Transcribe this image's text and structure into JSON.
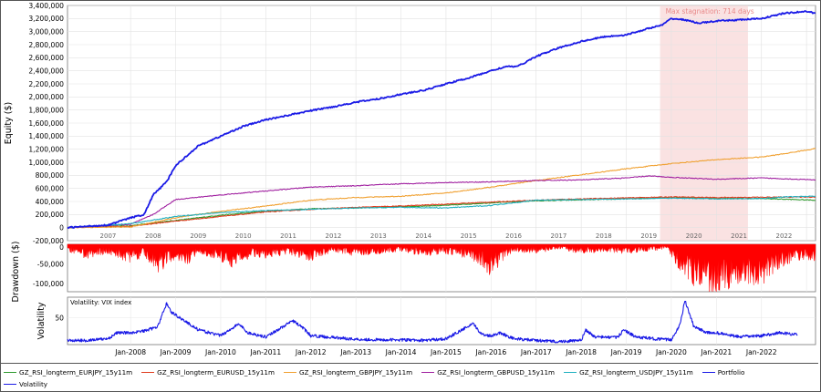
{
  "chart_data": [
    {
      "type": "line",
      "panel": "equity",
      "ylabel": "Equity ($)",
      "ylim": [
        -200000,
        3400000
      ],
      "yticks": [
        -200000,
        0,
        200000,
        400000,
        600000,
        800000,
        1000000,
        1200000,
        1400000,
        1600000,
        1800000,
        2000000,
        2200000,
        2400000,
        2600000,
        2800000,
        3000000,
        3200000,
        3400000
      ],
      "ytick_labels": [
        "-200,000",
        "0",
        "200,000",
        "400,000",
        "600,000",
        "800,000",
        "1,000,000",
        "1,200,000",
        "1,400,000",
        "1,600,000",
        "1,800,000",
        "2,000,000",
        "2,200,000",
        "2,400,000",
        "2,600,000",
        "2,800,000",
        "3,000,000",
        "3,200,000",
        "3,400,000"
      ],
      "xlim": [
        2006.6,
        2023.2
      ],
      "xticks": [
        2007,
        2008,
        2009,
        2010,
        2011,
        2012,
        2013,
        2014,
        2015,
        2016,
        2017,
        2018,
        2019,
        2020,
        2021,
        2022
      ],
      "xtick_labels": [
        "2007",
        "2008",
        "2009",
        "2010",
        "2011",
        "2012",
        "2013",
        "2014",
        "2015",
        "2016",
        "2017",
        "2018",
        "2019",
        "2020",
        "2021",
        "2022"
      ],
      "grid": true,
      "annotation": {
        "text": "Max stagnation: 714 days",
        "x_range": [
          2019.75,
          2021.7
        ]
      },
      "series": [
        {
          "name": "Portfolio",
          "color": "#1a1ae6",
          "x": [
            2006.6,
            2007.5,
            2008.0,
            2008.3,
            2008.5,
            2008.8,
            2009.0,
            2009.5,
            2010.0,
            2010.5,
            2011.0,
            2011.5,
            2012.0,
            2012.5,
            2013.0,
            2013.5,
            2014.0,
            2014.5,
            2015.0,
            2015.5,
            2016.0,
            2016.3,
            2016.6,
            2017.0,
            2017.5,
            2018.0,
            2018.5,
            2019.0,
            2019.5,
            2019.8,
            2020.0,
            2020.3,
            2020.6,
            2021.0,
            2021.5,
            2022.0,
            2022.5,
            2023.0,
            2023.2
          ],
          "y": [
            0,
            40000,
            150000,
            200000,
            500000,
            700000,
            950000,
            1250000,
            1400000,
            1550000,
            1650000,
            1720000,
            1790000,
            1850000,
            1920000,
            1970000,
            2040000,
            2100000,
            2200000,
            2290000,
            2400000,
            2460000,
            2470000,
            2620000,
            2750000,
            2850000,
            2920000,
            2950000,
            3050000,
            3100000,
            3200000,
            3180000,
            3130000,
            3160000,
            3180000,
            3200000,
            3280000,
            3310000,
            3280000
          ]
        },
        {
          "name": "GZ_RSI_longterm_EURJPY_15y11m",
          "color": "#2e9a2e",
          "x": [
            2006.6,
            2008.0,
            2009.0,
            2010.0,
            2011.0,
            2012.0,
            2013.0,
            2014.0,
            2015.0,
            2016.0,
            2017.0,
            2018.0,
            2019.0,
            2020.0,
            2021.0,
            2022.0,
            2023.2
          ],
          "y": [
            0,
            30000,
            110000,
            190000,
            250000,
            290000,
            300000,
            320000,
            340000,
            380000,
            410000,
            425000,
            440000,
            460000,
            450000,
            445000,
            420000
          ]
        },
        {
          "name": "GZ_RSI_longterm_EURUSD_15y11m",
          "color": "#e03c1e",
          "x": [
            2006.6,
            2008.0,
            2009.0,
            2010.0,
            2011.0,
            2012.0,
            2013.0,
            2014.0,
            2015.0,
            2016.0,
            2017.0,
            2018.0,
            2019.0,
            2020.0,
            2021.0,
            2022.0,
            2023.2
          ],
          "y": [
            0,
            20000,
            100000,
            170000,
            240000,
            280000,
            310000,
            330000,
            360000,
            390000,
            420000,
            440000,
            455000,
            470000,
            460000,
            465000,
            470000
          ]
        },
        {
          "name": "GZ_RSI_longterm_GBPJPY_15y11m",
          "color": "#f0a030",
          "x": [
            2006.6,
            2008.0,
            2009.0,
            2010.0,
            2011.0,
            2012.0,
            2013.0,
            2014.0,
            2015.0,
            2016.0,
            2017.0,
            2018.0,
            2019.0,
            2020.0,
            2021.0,
            2022.0,
            2022.5,
            2023.2
          ],
          "y": [
            0,
            10000,
            150000,
            250000,
            330000,
            420000,
            460000,
            480000,
            530000,
            620000,
            720000,
            810000,
            900000,
            980000,
            1040000,
            1080000,
            1130000,
            1210000
          ]
        },
        {
          "name": "GZ_RSI_longterm_GBPUSD_15y11m",
          "color": "#a020a0",
          "x": [
            2006.6,
            2008.0,
            2008.5,
            2009.0,
            2010.0,
            2011.0,
            2012.0,
            2013.0,
            2014.0,
            2015.0,
            2016.0,
            2017.0,
            2018.0,
            2019.0,
            2019.5,
            2020.0,
            2021.0,
            2022.0,
            2023.2
          ],
          "y": [
            0,
            50000,
            200000,
            430000,
            500000,
            560000,
            620000,
            640000,
            670000,
            690000,
            700000,
            720000,
            730000,
            760000,
            790000,
            770000,
            740000,
            760000,
            730000
          ]
        },
        {
          "name": "GZ_RSI_longterm_USDJPY_15y11m",
          "color": "#20b0c0",
          "x": [
            2006.6,
            2008.0,
            2009.0,
            2010.0,
            2011.0,
            2012.0,
            2013.0,
            2014.0,
            2015.0,
            2016.0,
            2017.0,
            2018.0,
            2019.0,
            2020.0,
            2021.0,
            2022.0,
            2022.5,
            2023.2
          ],
          "y": [
            0,
            60000,
            170000,
            230000,
            260000,
            280000,
            300000,
            310000,
            300000,
            340000,
            420000,
            430000,
            440000,
            450000,
            440000,
            445000,
            470000,
            480000
          ]
        }
      ]
    },
    {
      "type": "area",
      "panel": "drawdown",
      "ylabel": "Drawdown ($)",
      "ylim": [
        -120000,
        0
      ],
      "yticks": [
        0,
        -50000,
        -100000
      ],
      "ytick_labels": [
        "0",
        "-50,000",
        "-100,000"
      ],
      "xlim": [
        2006.6,
        2023.2
      ],
      "series": [
        {
          "name": "Drawdown",
          "color": "#ff0000",
          "x": [
            2006.6,
            2007.0,
            2007.5,
            2008.0,
            2008.3,
            2008.6,
            2009.0,
            2009.2,
            2009.5,
            2010.0,
            2010.3,
            2010.7,
            2011.0,
            2011.5,
            2012.0,
            2012.5,
            2013.0,
            2013.5,
            2014.0,
            2014.5,
            2015.0,
            2015.5,
            2015.8,
            2016.0,
            2016.2,
            2016.5,
            2017.0,
            2017.5,
            2018.0,
            2018.5,
            2019.0,
            2019.5,
            2019.9,
            2020.2,
            2020.5,
            2020.8,
            2021.0,
            2021.3,
            2021.6,
            2022.0,
            2022.3,
            2022.6,
            2023.0,
            2023.2
          ],
          "y": [
            -15000,
            -30000,
            -20000,
            -40000,
            -25000,
            -60000,
            -30000,
            -50000,
            -20000,
            -35000,
            -50000,
            -25000,
            -30000,
            -20000,
            -35000,
            -15000,
            -25000,
            -20000,
            -15000,
            -25000,
            -20000,
            -30000,
            -45000,
            -70000,
            -40000,
            -15000,
            -20000,
            -10000,
            -20000,
            -15000,
            -20000,
            -15000,
            -10000,
            -60000,
            -85000,
            -100000,
            -110000,
            -90000,
            -80000,
            -85000,
            -60000,
            -40000,
            -30000,
            -40000
          ]
        }
      ]
    },
    {
      "type": "line",
      "panel": "volatility",
      "title": "Volatility: VIX index",
      "ylabel": "Volatility",
      "ylim": [
        5,
        85
      ],
      "yticks": [
        50
      ],
      "ytick_labels": [
        "50"
      ],
      "xlim": [
        2006.6,
        2023.2
      ],
      "xticks": [
        2008.0,
        2009.0,
        2010.0,
        2011.0,
        2012.0,
        2013.0,
        2014.0,
        2015.0,
        2016.0,
        2017.0,
        2018.0,
        2019.0,
        2020.0,
        2021.0,
        2022.0
      ],
      "xtick_labels": [
        "Jan-2008",
        "Jan-2009",
        "Jan-2010",
        "Jan-2011",
        "Jan-2012",
        "Jan-2013",
        "Jan-2014",
        "Jan-2015",
        "Jan-2016",
        "Jan-2017",
        "Jan-2018",
        "Jan-2019",
        "Jan-2020",
        "Jan-2021",
        "Jan-2022"
      ],
      "series": [
        {
          "name": "Volatility",
          "color": "#1a1ae6",
          "x": [
            2006.6,
            2007.0,
            2007.5,
            2007.7,
            2008.0,
            2008.3,
            2008.6,
            2008.8,
            2008.9,
            2009.2,
            2009.5,
            2010.0,
            2010.4,
            2010.6,
            2011.0,
            2011.6,
            2011.8,
            2012.0,
            2012.5,
            2013.0,
            2013.5,
            2014.0,
            2014.5,
            2015.0,
            2015.6,
            2015.8,
            2016.0,
            2016.2,
            2016.5,
            2017.0,
            2017.5,
            2018.0,
            2018.1,
            2018.3,
            2018.8,
            2018.95,
            2019.2,
            2019.6,
            2020.0,
            2020.2,
            2020.3,
            2020.5,
            2020.8,
            2021.0,
            2021.5,
            2022.0,
            2022.4,
            2022.8
          ],
          "y": [
            12,
            12,
            15,
            25,
            25,
            28,
            35,
            75,
            60,
            45,
            30,
            20,
            40,
            25,
            18,
            45,
            35,
            20,
            17,
            14,
            13,
            13,
            12,
            15,
            40,
            22,
            20,
            25,
            15,
            12,
            10,
            12,
            30,
            18,
            17,
            30,
            18,
            15,
            13,
            40,
            80,
            35,
            25,
            25,
            18,
            20,
            25,
            22
          ]
        }
      ]
    }
  ],
  "legend": {
    "row1": [
      {
        "name": "GZ_RSI_longterm_EURJPY_15y11m",
        "color": "#2e9a2e"
      },
      {
        "name": "GZ_RSI_longterm_EURUSD_15y11m",
        "color": "#e03c1e"
      },
      {
        "name": "GZ_RSI_longterm_GBPJPY_15y11m",
        "color": "#f0a030"
      },
      {
        "name": "GZ_RSI_longterm_GBPUSD_15y11m",
        "color": "#a020a0"
      },
      {
        "name": "GZ_RSI_longterm_USDJPY_15y11m",
        "color": "#20b0c0"
      },
      {
        "name": "Portfolio",
        "color": "#1a1ae6"
      }
    ],
    "row2": [
      {
        "name": "Volatility",
        "color": "#1a1ae6"
      }
    ]
  }
}
